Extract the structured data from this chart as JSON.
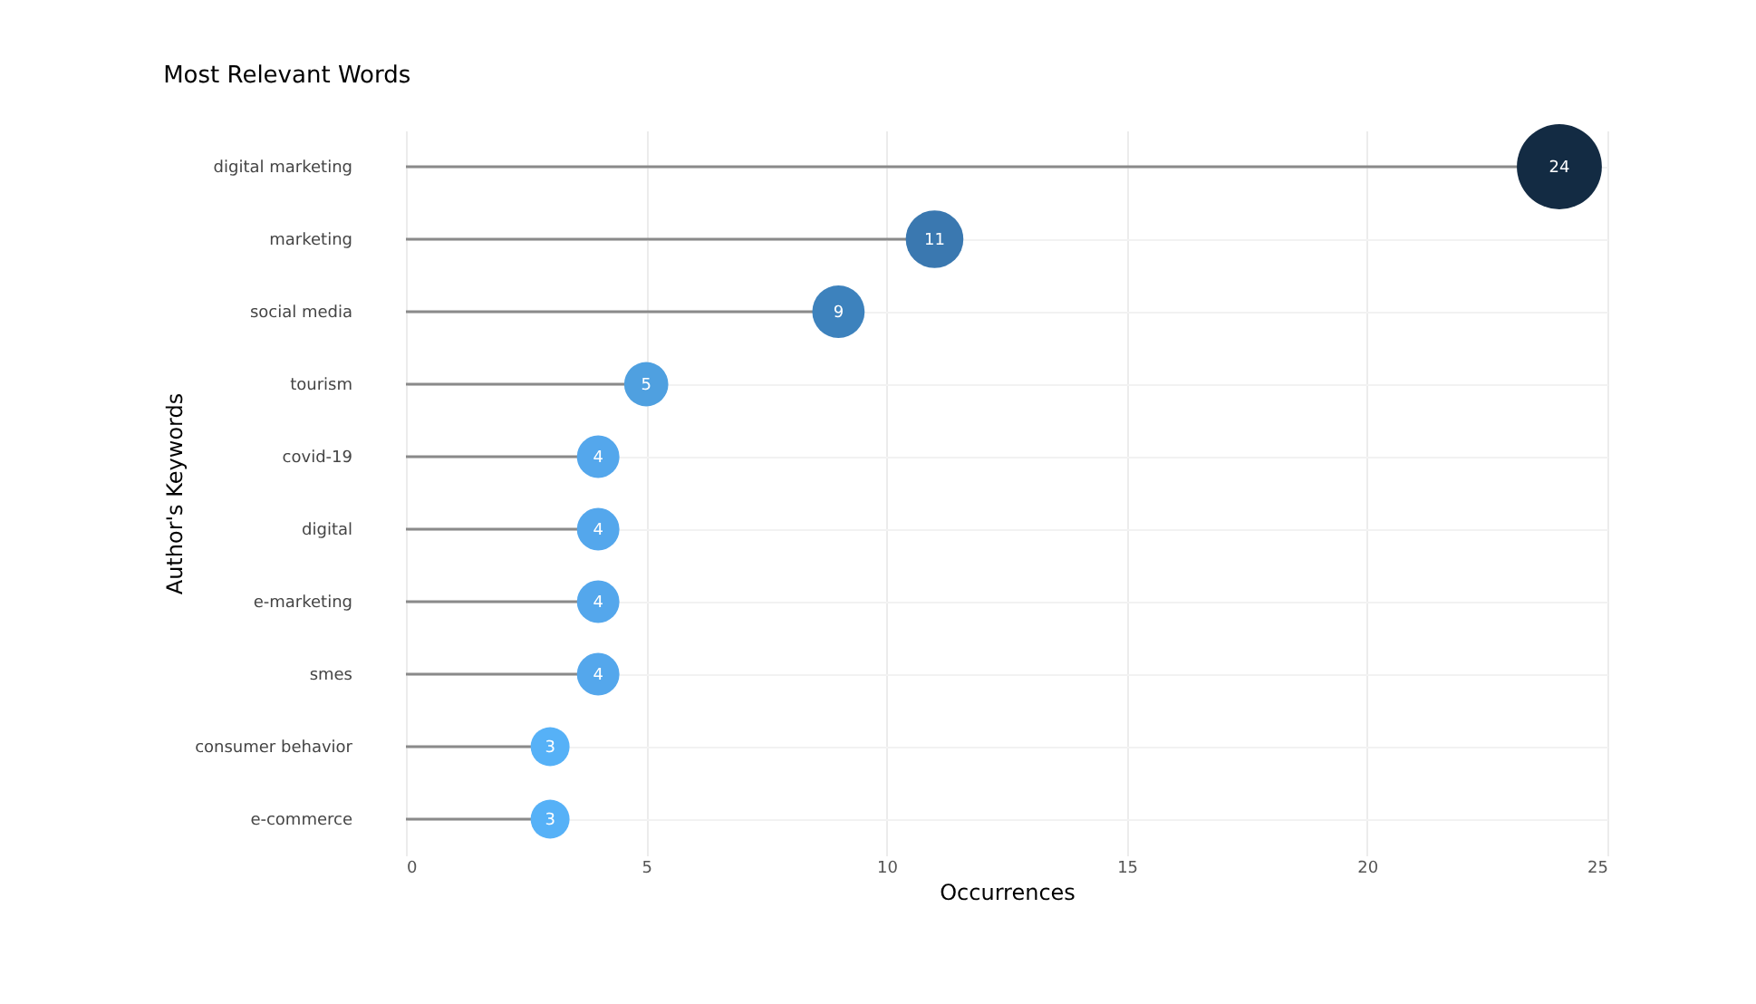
{
  "chart_data": {
    "type": "lollipop",
    "title": "Most Relevant Words",
    "xlabel": "Occurrences",
    "ylabel": "Author's Keywords",
    "orientation": "horizontal",
    "categories": [
      "digital marketing",
      "marketing",
      "social media",
      "tourism",
      "covid-19",
      "digital",
      "e-marketing",
      "smes",
      "consumer behavior",
      "e-commerce"
    ],
    "values": [
      24,
      11,
      9,
      5,
      4,
      4,
      4,
      4,
      3,
      3
    ],
    "sizes": [
      1,
      0.46,
      0.38,
      0.27,
      0.25,
      0.25,
      0.25,
      0.25,
      0.21,
      0.21
    ],
    "colors": [
      "#132b43",
      "#3a78b0",
      "#3d82bd",
      "#4fa0e0",
      "#54a7ec",
      "#54a7ec",
      "#54a7ec",
      "#54a7ec",
      "#56b1f7",
      "#56b1f7"
    ],
    "xlim": [
      0,
      25
    ],
    "xticks": [
      0,
      5,
      10,
      15,
      20,
      25
    ],
    "data_labels": true,
    "grid": true,
    "line_style": "solid"
  }
}
